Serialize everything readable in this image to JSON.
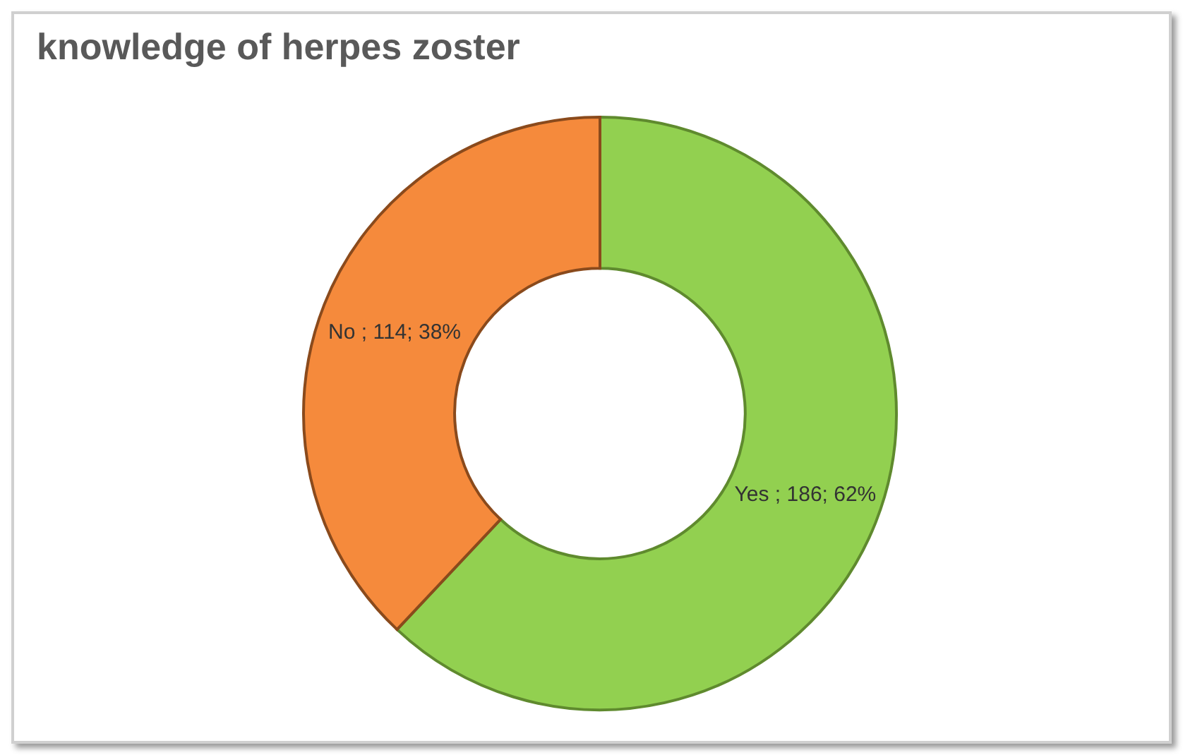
{
  "chart_data": {
    "type": "donut",
    "title": "knowledge of herpes zoster",
    "categories": [
      "Yes",
      "No"
    ],
    "values": [
      186,
      114
    ],
    "colors": [
      "#92d050",
      "#f58a3c"
    ],
    "value_labels": [
      "186; 62%",
      "114; 38%"
    ]
  }
}
